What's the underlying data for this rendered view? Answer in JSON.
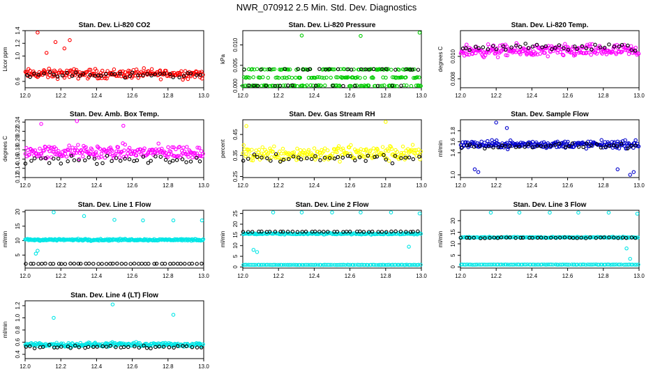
{
  "figure_title": "NWR_070912  2.5 Min. Std. Dev. Diagnostics",
  "chart_data": [
    {
      "type": "scatter",
      "title": "Stan. Dev. Li-820 CO2",
      "ylabel": "Licor ppm",
      "xlim": [
        12.0,
        13.0
      ],
      "ylim": [
        0.5,
        1.4
      ],
      "xticks": [
        "12.0",
        "12.2",
        "12.4",
        "12.6",
        "12.8",
        "13.0"
      ],
      "yticks": [
        {
          "v": 0.6,
          "t": "0.6"
        },
        {
          "v": 1.0,
          "t": "1.0"
        },
        {
          "v": 1.2,
          "t": "1.2"
        },
        {
          "v": 1.4,
          "t": "1.4"
        }
      ],
      "series": [
        {
          "name": "main",
          "color": "#ff0000",
          "base": 0.72,
          "spread": 0.11,
          "count": 220,
          "outliers": [
            [
              12.07,
              1.37
            ],
            [
              12.17,
              1.22
            ],
            [
              12.25,
              1.25
            ],
            [
              12.12,
              1.05
            ],
            [
              12.22,
              1.12
            ]
          ]
        },
        {
          "name": "black",
          "color": "#000000",
          "base": 0.7,
          "spread": 0.07,
          "count": 40
        }
      ]
    },
    {
      "type": "scatter",
      "title": "Stan. Dev. Li-820 Pressure",
      "ylabel": "kPa",
      "xlim": [
        12.0,
        13.0
      ],
      "ylim": [
        -0.0005,
        0.0135
      ],
      "xticks": [
        "12.0",
        "12.2",
        "12.4",
        "12.6",
        "12.8",
        "13.0"
      ],
      "yticks": [
        {
          "v": 0.0,
          "t": "0.000"
        },
        {
          "v": 0.005,
          "t": "0.005"
        },
        {
          "v": 0.01,
          "t": "0.010"
        }
      ],
      "series": [
        {
          "name": "main",
          "color": "#00cc00",
          "levels": [
            0.0,
            0.002,
            0.004
          ],
          "count": 240,
          "outliers": [
            [
              12.33,
              0.0123
            ],
            [
              12.66,
              0.0122
            ],
            [
              12.99,
              0.013
            ]
          ]
        },
        {
          "name": "black",
          "color": "#000000",
          "levels": [
            0.0,
            0.004
          ],
          "count": 40
        }
      ]
    },
    {
      "type": "scatter",
      "title": "Stan. Dev. Li-820 Temp.",
      "ylabel": "degrees C",
      "xlim": [
        12.0,
        13.0
      ],
      "ylim": [
        0.0072,
        0.0123
      ],
      "xticks": [
        "12.0",
        "12.2",
        "12.4",
        "12.6",
        "12.8",
        "13.0"
      ],
      "yticks": [
        {
          "v": 0.008,
          "t": "0.008"
        },
        {
          "v": 0.01,
          "t": "0.010"
        }
      ],
      "series": [
        {
          "name": "main",
          "color": "#ff00ff",
          "base": 0.0105,
          "spread": 0.0008,
          "count": 240,
          "outliers": []
        },
        {
          "name": "black",
          "color": "#000000",
          "base": 0.0108,
          "spread": 0.0005,
          "count": 40
        }
      ]
    },
    {
      "type": "scatter",
      "title": "Stan. Dev. Amb. Box Temp.",
      "ylabel": "degrees C",
      "xlim": [
        12.0,
        13.0
      ],
      "ylim": [
        0.12,
        0.245
      ],
      "xticks": [
        "12.0",
        "12.2",
        "12.4",
        "12.6",
        "12.8",
        "13.0"
      ],
      "yticks": [
        {
          "v": 0.12,
          "t": "0.12"
        },
        {
          "v": 0.14,
          "t": "0.14"
        },
        {
          "v": 0.16,
          "t": "0.16"
        },
        {
          "v": 0.18,
          "t": "0.18"
        },
        {
          "v": 0.2,
          "t": "0.20"
        },
        {
          "v": 0.22,
          "t": "0.22"
        },
        {
          "v": 0.24,
          "t": "0.24"
        }
      ],
      "series": [
        {
          "name": "main",
          "color": "#ff00ff",
          "base": 0.175,
          "spread": 0.022,
          "count": 220,
          "outliers": [
            [
              12.29,
              0.242
            ],
            [
              12.55,
              0.232
            ],
            [
              12.09,
              0.236
            ]
          ]
        },
        {
          "name": "black",
          "color": "#000000",
          "base": 0.158,
          "spread": 0.012,
          "count": 40
        }
      ]
    },
    {
      "type": "scatter",
      "title": "Stan. Dev. Gas Stream RH",
      "ylabel": "percent",
      "xlim": [
        12.0,
        13.0
      ],
      "ylim": [
        0.245,
        0.52
      ],
      "xticks": [
        "12.0",
        "12.2",
        "12.4",
        "12.6",
        "12.8",
        "13.0"
      ],
      "yticks": [
        {
          "v": 0.25,
          "t": "0.25"
        },
        {
          "v": 0.35,
          "t": "0.35"
        },
        {
          "v": 0.45,
          "t": "0.45"
        }
      ],
      "series": [
        {
          "name": "main",
          "color": "#ffff00",
          "base": 0.36,
          "spread": 0.055,
          "count": 220,
          "outliers": [
            [
              12.8,
              0.51
            ],
            [
              12.02,
              0.49
            ]
          ]
        },
        {
          "name": "black",
          "color": "#000000",
          "base": 0.34,
          "spread": 0.035,
          "count": 40
        }
      ]
    },
    {
      "type": "scatter",
      "title": "Stan. Dev. Sample Flow",
      "ylabel": "ml/min",
      "xlim": [
        12.0,
        13.0
      ],
      "ylim": [
        0.95,
        2.0
      ],
      "xticks": [
        "12.0",
        "12.2",
        "12.4",
        "12.6",
        "12.8",
        "13.0"
      ],
      "yticks": [
        {
          "v": 1.0,
          "t": "1.0"
        },
        {
          "v": 1.4,
          "t": "1.4"
        },
        {
          "v": 1.6,
          "t": "1.6"
        },
        {
          "v": 1.8,
          "t": "1.8"
        }
      ],
      "series": [
        {
          "name": "main",
          "color": "#0000cc",
          "base": 1.55,
          "spread": 0.1,
          "count": 240,
          "outliers": [
            [
              12.1,
              1.05
            ],
            [
              12.08,
              1.1
            ],
            [
              12.88,
              1.1
            ],
            [
              12.95,
              1.0
            ],
            [
              12.97,
              1.05
            ],
            [
              12.2,
              1.95
            ],
            [
              12.26,
              1.85
            ]
          ]
        },
        {
          "name": "black",
          "color": "#000000",
          "base": 1.52,
          "spread": 0.07,
          "count": 40
        }
      ]
    },
    {
      "type": "scatter",
      "title": "Stan. Dev. Line 1 Flow",
      "ylabel": "ml/min",
      "xlim": [
        12.0,
        13.0
      ],
      "ylim": [
        0.5,
        20.5
      ],
      "xticks": [
        "12.0",
        "12.2",
        "12.4",
        "12.6",
        "12.8",
        "13.0"
      ],
      "yticks": [
        {
          "v": 5,
          "t": "5"
        },
        {
          "v": 10,
          "t": "10"
        },
        {
          "v": 15,
          "t": "15"
        },
        {
          "v": 20,
          "t": "20"
        }
      ],
      "series": [
        {
          "name": "main",
          "color": "#00e6e6",
          "base": 10.3,
          "spread": 0.5,
          "count": 240,
          "outliers": [
            [
              12.16,
              19.8
            ],
            [
              12.33,
              18.5
            ],
            [
              12.5,
              17.2
            ],
            [
              12.66,
              17.0
            ],
            [
              12.83,
              17.0
            ],
            [
              12.99,
              17.0
            ],
            [
              12.07,
              6.5
            ],
            [
              12.06,
              5.5
            ]
          ]
        },
        {
          "name": "black",
          "color": "#000000",
          "base": 2.0,
          "spread": 0.1,
          "count": 45
        }
      ]
    },
    {
      "type": "scatter",
      "title": "Stan. Dev. Line 2 Flow",
      "ylabel": "ml/min",
      "xlim": [
        12.0,
        13.0
      ],
      "ylim": [
        -0.5,
        26.5
      ],
      "xticks": [
        "12.0",
        "12.2",
        "12.4",
        "12.6",
        "12.8",
        "13.0"
      ],
      "yticks": [
        {
          "v": 0,
          "t": "0"
        },
        {
          "v": 5,
          "t": "5"
        },
        {
          "v": 10,
          "t": "10"
        },
        {
          "v": 15,
          "t": "15"
        },
        {
          "v": 20,
          "t": "20"
        },
        {
          "v": 25,
          "t": "25"
        }
      ],
      "series": [
        {
          "name": "main",
          "color": "#00e6e6",
          "base": 15.5,
          "spread": 0.5,
          "count": 160,
          "outliers": [
            [
              12.17,
              25.5
            ],
            [
              12.33,
              25.5
            ],
            [
              12.5,
              25.5
            ],
            [
              12.66,
              25.5
            ],
            [
              12.83,
              25.5
            ],
            [
              12.99,
              25.0
            ],
            [
              12.06,
              8.0
            ],
            [
              12.08,
              7.0
            ],
            [
              12.93,
              9.5
            ]
          ]
        },
        {
          "name": "base",
          "color": "#00e6e6",
          "base": 1.0,
          "spread": 0.1,
          "count": 110
        },
        {
          "name": "black",
          "color": "#000000",
          "base": 16.5,
          "spread": 0.2,
          "count": 40
        }
      ]
    },
    {
      "type": "scatter",
      "title": "Stan. Dev. Line 3 Flow",
      "ylabel": "ml/min",
      "xlim": [
        12.0,
        13.0
      ],
      "ylim": [
        -0.5,
        24.5
      ],
      "xticks": [
        "12.0",
        "12.2",
        "12.4",
        "12.6",
        "12.8",
        "13.0"
      ],
      "yticks": [
        {
          "v": 0,
          "t": "0"
        },
        {
          "v": 5,
          "t": "5"
        },
        {
          "v": 10,
          "t": "10"
        },
        {
          "v": 15,
          "t": "15"
        },
        {
          "v": 20,
          "t": "20"
        }
      ],
      "series": [
        {
          "name": "main",
          "color": "#00e6e6",
          "base": 12.8,
          "spread": 0.4,
          "count": 150,
          "outliers": [
            [
              12.17,
              23.5
            ],
            [
              12.33,
              23.5
            ],
            [
              12.5,
              23.5
            ],
            [
              12.66,
              23.5
            ],
            [
              12.83,
              23.5
            ],
            [
              12.99,
              23.0
            ],
            [
              12.93,
              8.0
            ],
            [
              12.95,
              3.5
            ]
          ]
        },
        {
          "name": "base",
          "color": "#00e6e6",
          "base": 1.0,
          "spread": 0.1,
          "count": 110
        },
        {
          "name": "black",
          "color": "#000000",
          "base": 12.6,
          "spread": 0.3,
          "count": 40
        }
      ]
    },
    {
      "type": "scatter",
      "title": "Stan. Dev. Line 4 (LT) Flow",
      "ylabel": "ml/min",
      "xlim": [
        12.0,
        13.0
      ],
      "ylim": [
        0.33,
        1.28
      ],
      "xticks": [
        "12.0",
        "12.2",
        "12.4",
        "12.6",
        "12.8",
        "13.0"
      ],
      "yticks": [
        {
          "v": 0.4,
          "t": "0.4"
        },
        {
          "v": 0.6,
          "t": "0.6"
        },
        {
          "v": 0.8,
          "t": "0.8"
        },
        {
          "v": 1.0,
          "t": "1.0"
        },
        {
          "v": 1.2,
          "t": "1.2"
        }
      ],
      "series": [
        {
          "name": "main",
          "color": "#00e6e6",
          "base": 0.56,
          "spread": 0.05,
          "count": 240,
          "outliers": [
            [
              12.49,
              1.22
            ],
            [
              12.16,
              1.0
            ],
            [
              12.83,
              1.05
            ]
          ]
        },
        {
          "name": "black",
          "color": "#000000",
          "base": 0.52,
          "spread": 0.04,
          "count": 40
        }
      ]
    }
  ]
}
